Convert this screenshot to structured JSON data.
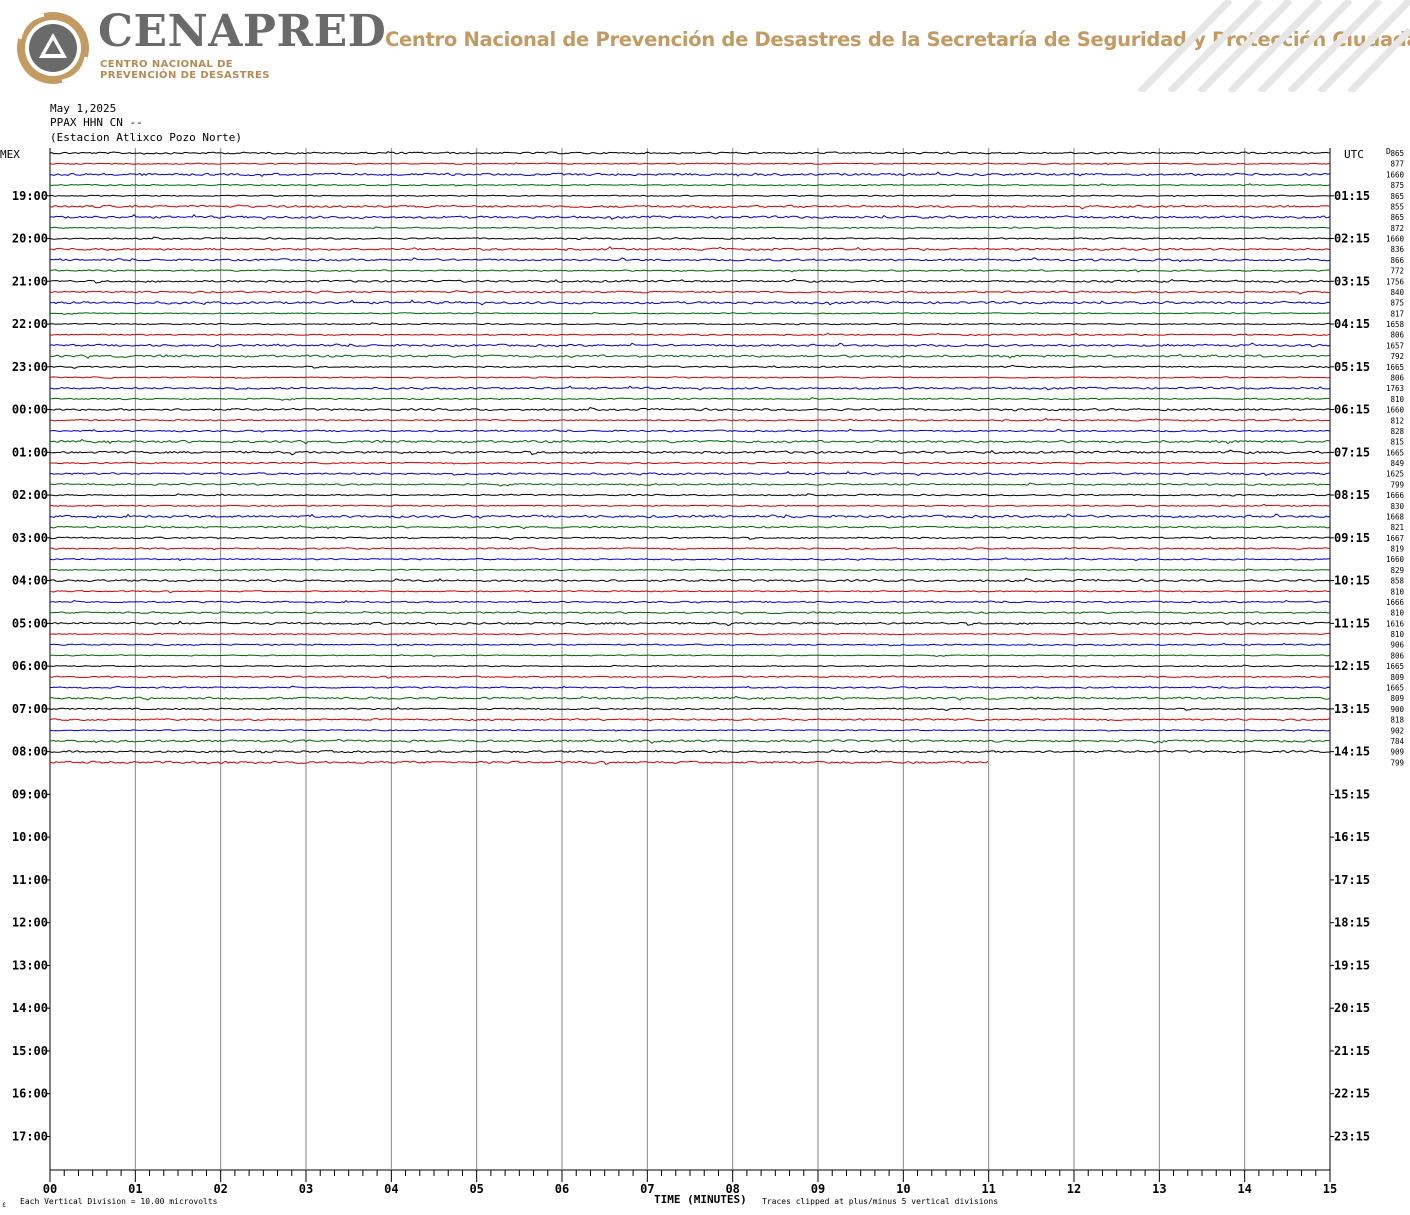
{
  "header": {
    "brand": "CENAPRED",
    "brand_sub_1": "CENTRO NACIONAL DE",
    "brand_sub_2": "PREVENCIÓN DE DESASTRES",
    "org_title": "Centro Nacional de Prevención de Desastres de la Secretaría de Seguridad y Protección Ciudadana",
    "brand_color": "#c49a63",
    "logo_icon": "cenapred-triangle-icon"
  },
  "station": {
    "date": "May 1,2025",
    "channel": "PPAX HHN CN --",
    "name": "(Estacion Atlixco Pozo Norte)"
  },
  "chart_data": {
    "type": "line",
    "title": "",
    "left_axis_label": "MEX",
    "right_axis_label": "UTC",
    "xlabel": "TIME (MINUTES)",
    "x_ticks": [
      "00",
      "01",
      "02",
      "03",
      "04",
      "05",
      "06",
      "07",
      "08",
      "09",
      "10",
      "11",
      "12",
      "13",
      "14",
      "15"
    ],
    "xlim": [
      0,
      15
    ],
    "left_hour_labels": [
      "19:00",
      "20:00",
      "21:00",
      "22:00",
      "23:00",
      "00:00",
      "01:00",
      "02:00",
      "03:00",
      "04:00",
      "05:00",
      "06:00",
      "07:00",
      "08:00",
      "09:00",
      "10:00",
      "11:00",
      "12:00",
      "13:00",
      "14:00",
      "15:00",
      "16:00",
      "17:00"
    ],
    "right_hour_labels": [
      "01:15",
      "02:15",
      "03:15",
      "04:15",
      "05:15",
      "06:15",
      "07:15",
      "08:15",
      "09:15",
      "10:15",
      "11:15",
      "12:15",
      "13:15",
      "14:15",
      "15:15",
      "16:15",
      "17:15",
      "18:15",
      "19:15",
      "20:15",
      "21:15",
      "22:15",
      "23:15"
    ],
    "rows_per_hour": 4,
    "rows_before_first_label": 4,
    "trace_count": 58,
    "last_trace_end_minute": 11,
    "trace_colors": [
      "#000000",
      "#cc0000",
      "#0000cc",
      "#006600"
    ],
    "right_values": [
      "865",
      "877",
      "1660",
      "875",
      "865",
      "855",
      "865",
      "872",
      "1660",
      "836",
      "866",
      "772",
      "1756",
      "840",
      "875",
      "817",
      "1658",
      "806",
      "1657",
      "792",
      "1665",
      "806",
      "1763",
      "810",
      "1660",
      "812",
      "828",
      "815",
      "1665",
      "849",
      "1625",
      "799",
      "1666",
      "830",
      "1668",
      "821",
      "1667",
      "819",
      "1660",
      "829",
      "858",
      "810",
      "1666",
      "810",
      "1616",
      "810",
      "906",
      "806",
      "1665",
      "809",
      "1665",
      "809",
      "900",
      "818",
      "902",
      "784",
      "909",
      "799"
    ],
    "right_corner_label": "D",
    "footnote_left": "Each Vertical Division = 10.00 microvolts",
    "footnote_right": "Traces clipped at plus/minus 5 vertical divisions",
    "footnote_corner": "٤"
  }
}
